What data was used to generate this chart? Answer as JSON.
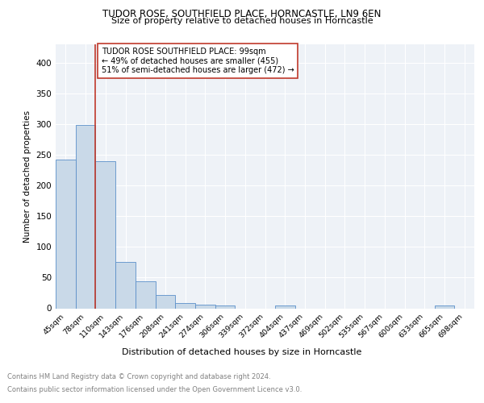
{
  "title1": "TUDOR ROSE, SOUTHFIELD PLACE, HORNCASTLE, LN9 6EN",
  "title2": "Size of property relative to detached houses in Horncastle",
  "xlabel": "Distribution of detached houses by size in Horncastle",
  "ylabel": "Number of detached properties",
  "bin_labels": [
    "45sqm",
    "78sqm",
    "110sqm",
    "143sqm",
    "176sqm",
    "208sqm",
    "241sqm",
    "274sqm",
    "306sqm",
    "339sqm",
    "372sqm",
    "404sqm",
    "437sqm",
    "469sqm",
    "502sqm",
    "535sqm",
    "567sqm",
    "600sqm",
    "633sqm",
    "665sqm",
    "698sqm"
  ],
  "bar_values": [
    242,
    299,
    239,
    75,
    44,
    22,
    9,
    6,
    4,
    0,
    0,
    4,
    0,
    0,
    0,
    0,
    0,
    0,
    0,
    4,
    0
  ],
  "bar_color": "#c9d9e8",
  "bar_edge_color": "#5b8fc9",
  "vline_color": "#c0392b",
  "annotation_text": "TUDOR ROSE SOUTHFIELD PLACE: 99sqm\n← 49% of detached houses are smaller (455)\n51% of semi-detached houses are larger (472) →",
  "annotation_box_edge": "#c0392b",
  "ylim": [
    0,
    430
  ],
  "yticks": [
    0,
    50,
    100,
    150,
    200,
    250,
    300,
    350,
    400
  ],
  "footer_text1": "Contains HM Land Registry data © Crown copyright and database right 2024.",
  "footer_text2": "Contains public sector information licensed under the Open Government Licence v3.0.",
  "plot_bg_color": "#eef2f7"
}
